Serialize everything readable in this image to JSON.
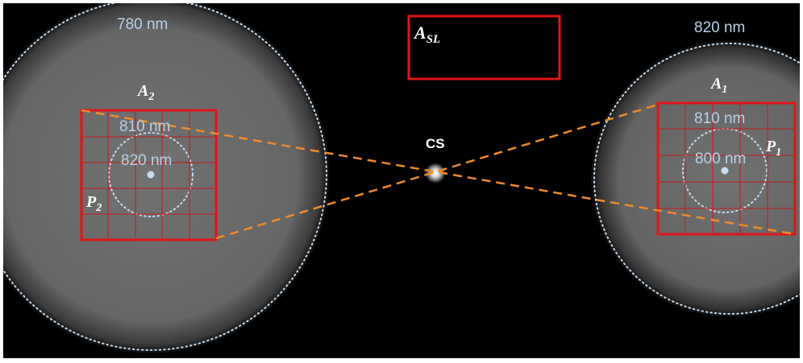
{
  "labels": {
    "left_outer_wavelength": "780 nm",
    "right_outer_wavelength": "820 nm",
    "left_box_top_wavelength": "810 nm",
    "left_inner_wavelength": "820 nm",
    "right_box_top_wavelength": "810 nm",
    "right_inner_wavelength": "800 nm",
    "center_spot": "CS",
    "area_sl": {
      "main": "A",
      "sub": "SL"
    },
    "area_2": {
      "main": "A",
      "sub": "2"
    },
    "area_1": {
      "main": "A",
      "sub": "1"
    },
    "point_2": {
      "main": "P",
      "sub": "2"
    },
    "point_1": {
      "main": "P",
      "sub": "1"
    }
  },
  "colors": {
    "background": "#000000",
    "frame": "#ffffff",
    "disk_fill": "#6e6e6e",
    "box_red": "#e01515",
    "grid_red": "#c81818",
    "dashed_orange": "#f08a2a",
    "dotted_circle": "#c6dcf0",
    "wavelength_text": "#b8d0e8",
    "label_white": "#ffffff"
  }
}
